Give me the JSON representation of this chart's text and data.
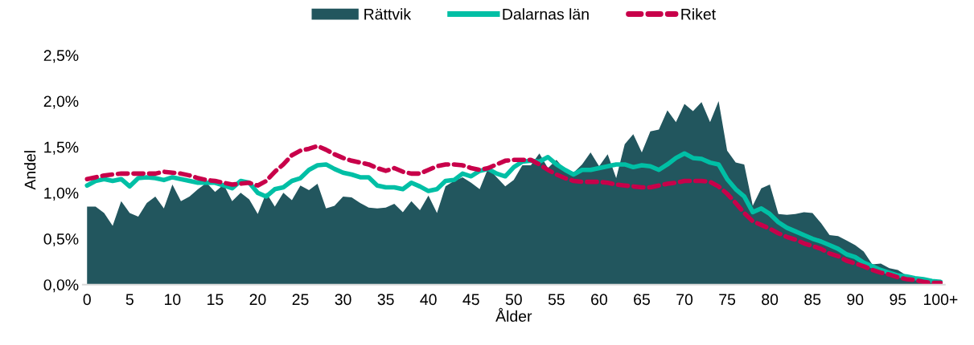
{
  "chart_data": {
    "type": "line",
    "xlabel": "Ålder",
    "ylabel": "Andel",
    "categories": [
      "0",
      null,
      null,
      null,
      null,
      "5",
      null,
      null,
      null,
      null,
      "10",
      null,
      null,
      null,
      null,
      "15",
      null,
      null,
      null,
      null,
      "20",
      null,
      null,
      null,
      null,
      "25",
      null,
      null,
      null,
      null,
      "30",
      null,
      null,
      null,
      null,
      "35",
      null,
      null,
      null,
      null,
      "40",
      null,
      null,
      null,
      null,
      "45",
      null,
      null,
      null,
      null,
      "50",
      null,
      null,
      null,
      null,
      "55",
      null,
      null,
      null,
      null,
      "60",
      null,
      null,
      null,
      null,
      "65",
      null,
      null,
      null,
      null,
      "70",
      null,
      null,
      null,
      null,
      "75",
      null,
      null,
      null,
      null,
      "80",
      null,
      null,
      null,
      null,
      "85",
      null,
      null,
      null,
      null,
      "90",
      null,
      null,
      null,
      null,
      "95",
      null,
      null,
      null,
      null,
      "100+"
    ],
    "series": [
      {
        "name": "Rättvik",
        "type": "area",
        "color": "#22565e",
        "values": [
          0.85,
          0.85,
          0.78,
          0.64,
          0.91,
          0.78,
          0.74,
          0.89,
          0.96,
          0.83,
          1.09,
          0.91,
          0.96,
          1.04,
          1.11,
          1.01,
          1.09,
          0.91,
          1.0,
          0.93,
          0.77,
          1.0,
          0.85,
          1.0,
          0.92,
          1.08,
          1.03,
          1.1,
          0.83,
          0.86,
          0.96,
          0.95,
          0.89,
          0.84,
          0.83,
          0.84,
          0.88,
          0.79,
          0.91,
          0.81,
          0.97,
          0.78,
          1.07,
          1.13,
          1.17,
          1.11,
          1.04,
          1.27,
          1.17,
          1.07,
          1.14,
          1.3,
          1.3,
          1.43,
          1.27,
          1.36,
          1.25,
          1.22,
          1.31,
          1.44,
          1.29,
          1.42,
          1.16,
          1.53,
          1.64,
          1.44,
          1.67,
          1.69,
          1.9,
          1.77,
          1.97,
          1.89,
          1.99,
          1.77,
          2.0,
          1.46,
          1.33,
          1.31,
          0.86,
          1.05,
          1.09,
          0.77,
          0.76,
          0.77,
          0.79,
          0.78,
          0.67,
          0.54,
          0.53,
          0.48,
          0.43,
          0.36,
          0.22,
          0.23,
          0.18,
          0.16,
          0.1,
          0.08,
          0.06,
          0.04,
          0.03
        ]
      },
      {
        "name": "Dalarnas län",
        "line_style": "solid",
        "color": "#00bfa5",
        "values": [
          1.08,
          1.13,
          1.15,
          1.13,
          1.15,
          1.07,
          1.16,
          1.17,
          1.16,
          1.14,
          1.17,
          1.15,
          1.13,
          1.11,
          1.11,
          1.11,
          1.08,
          1.05,
          1.13,
          1.11,
          1.0,
          0.96,
          1.04,
          1.06,
          1.13,
          1.16,
          1.25,
          1.3,
          1.31,
          1.26,
          1.22,
          1.2,
          1.17,
          1.17,
          1.08,
          1.06,
          1.06,
          1.04,
          1.11,
          1.07,
          1.02,
          1.04,
          1.13,
          1.14,
          1.21,
          1.18,
          1.24,
          1.26,
          1.21,
          1.18,
          1.28,
          1.34,
          1.35,
          1.34,
          1.39,
          1.31,
          1.25,
          1.2,
          1.25,
          1.25,
          1.27,
          1.29,
          1.31,
          1.31,
          1.28,
          1.3,
          1.29,
          1.25,
          1.31,
          1.38,
          1.43,
          1.38,
          1.37,
          1.33,
          1.31,
          1.15,
          1.04,
          0.96,
          0.79,
          0.83,
          0.77,
          0.68,
          0.62,
          0.58,
          0.54,
          0.5,
          0.47,
          0.43,
          0.39,
          0.33,
          0.3,
          0.24,
          0.2,
          0.16,
          0.13,
          0.1,
          0.09,
          0.07,
          0.06,
          0.04,
          0.03
        ]
      },
      {
        "name": "Riket",
        "line_style": "dashed",
        "color": "#c8004a",
        "values": [
          1.15,
          1.17,
          1.19,
          1.2,
          1.21,
          1.21,
          1.21,
          1.21,
          1.21,
          1.23,
          1.22,
          1.21,
          1.19,
          1.16,
          1.14,
          1.13,
          1.11,
          1.09,
          1.1,
          1.11,
          1.08,
          1.13,
          1.23,
          1.31,
          1.41,
          1.46,
          1.48,
          1.51,
          1.47,
          1.42,
          1.38,
          1.35,
          1.33,
          1.31,
          1.27,
          1.24,
          1.27,
          1.23,
          1.21,
          1.21,
          1.25,
          1.29,
          1.31,
          1.31,
          1.3,
          1.27,
          1.25,
          1.27,
          1.31,
          1.35,
          1.36,
          1.36,
          1.36,
          1.31,
          1.25,
          1.2,
          1.16,
          1.13,
          1.12,
          1.12,
          1.12,
          1.11,
          1.09,
          1.08,
          1.07,
          1.06,
          1.06,
          1.08,
          1.1,
          1.11,
          1.13,
          1.13,
          1.13,
          1.12,
          1.07,
          0.99,
          0.89,
          0.78,
          0.69,
          0.65,
          0.61,
          0.56,
          0.52,
          0.49,
          0.45,
          0.42,
          0.39,
          0.34,
          0.31,
          0.26,
          0.23,
          0.2,
          0.16,
          0.13,
          0.11,
          0.08,
          0.06,
          0.05,
          0.03,
          0.02,
          0.02
        ]
      }
    ],
    "ylim": [
      0,
      2.5
    ],
    "yticks": [
      {
        "value": 0,
        "label": "0,0%"
      },
      {
        "value": 0.5,
        "label": "0,5%"
      },
      {
        "value": 1.0,
        "label": "1,0%"
      },
      {
        "value": 1.5,
        "label": "1,5%"
      },
      {
        "value": 2.0,
        "label": "2,0%"
      },
      {
        "value": 2.5,
        "label": "2,5%"
      }
    ],
    "grid": false,
    "legend": "top"
  }
}
